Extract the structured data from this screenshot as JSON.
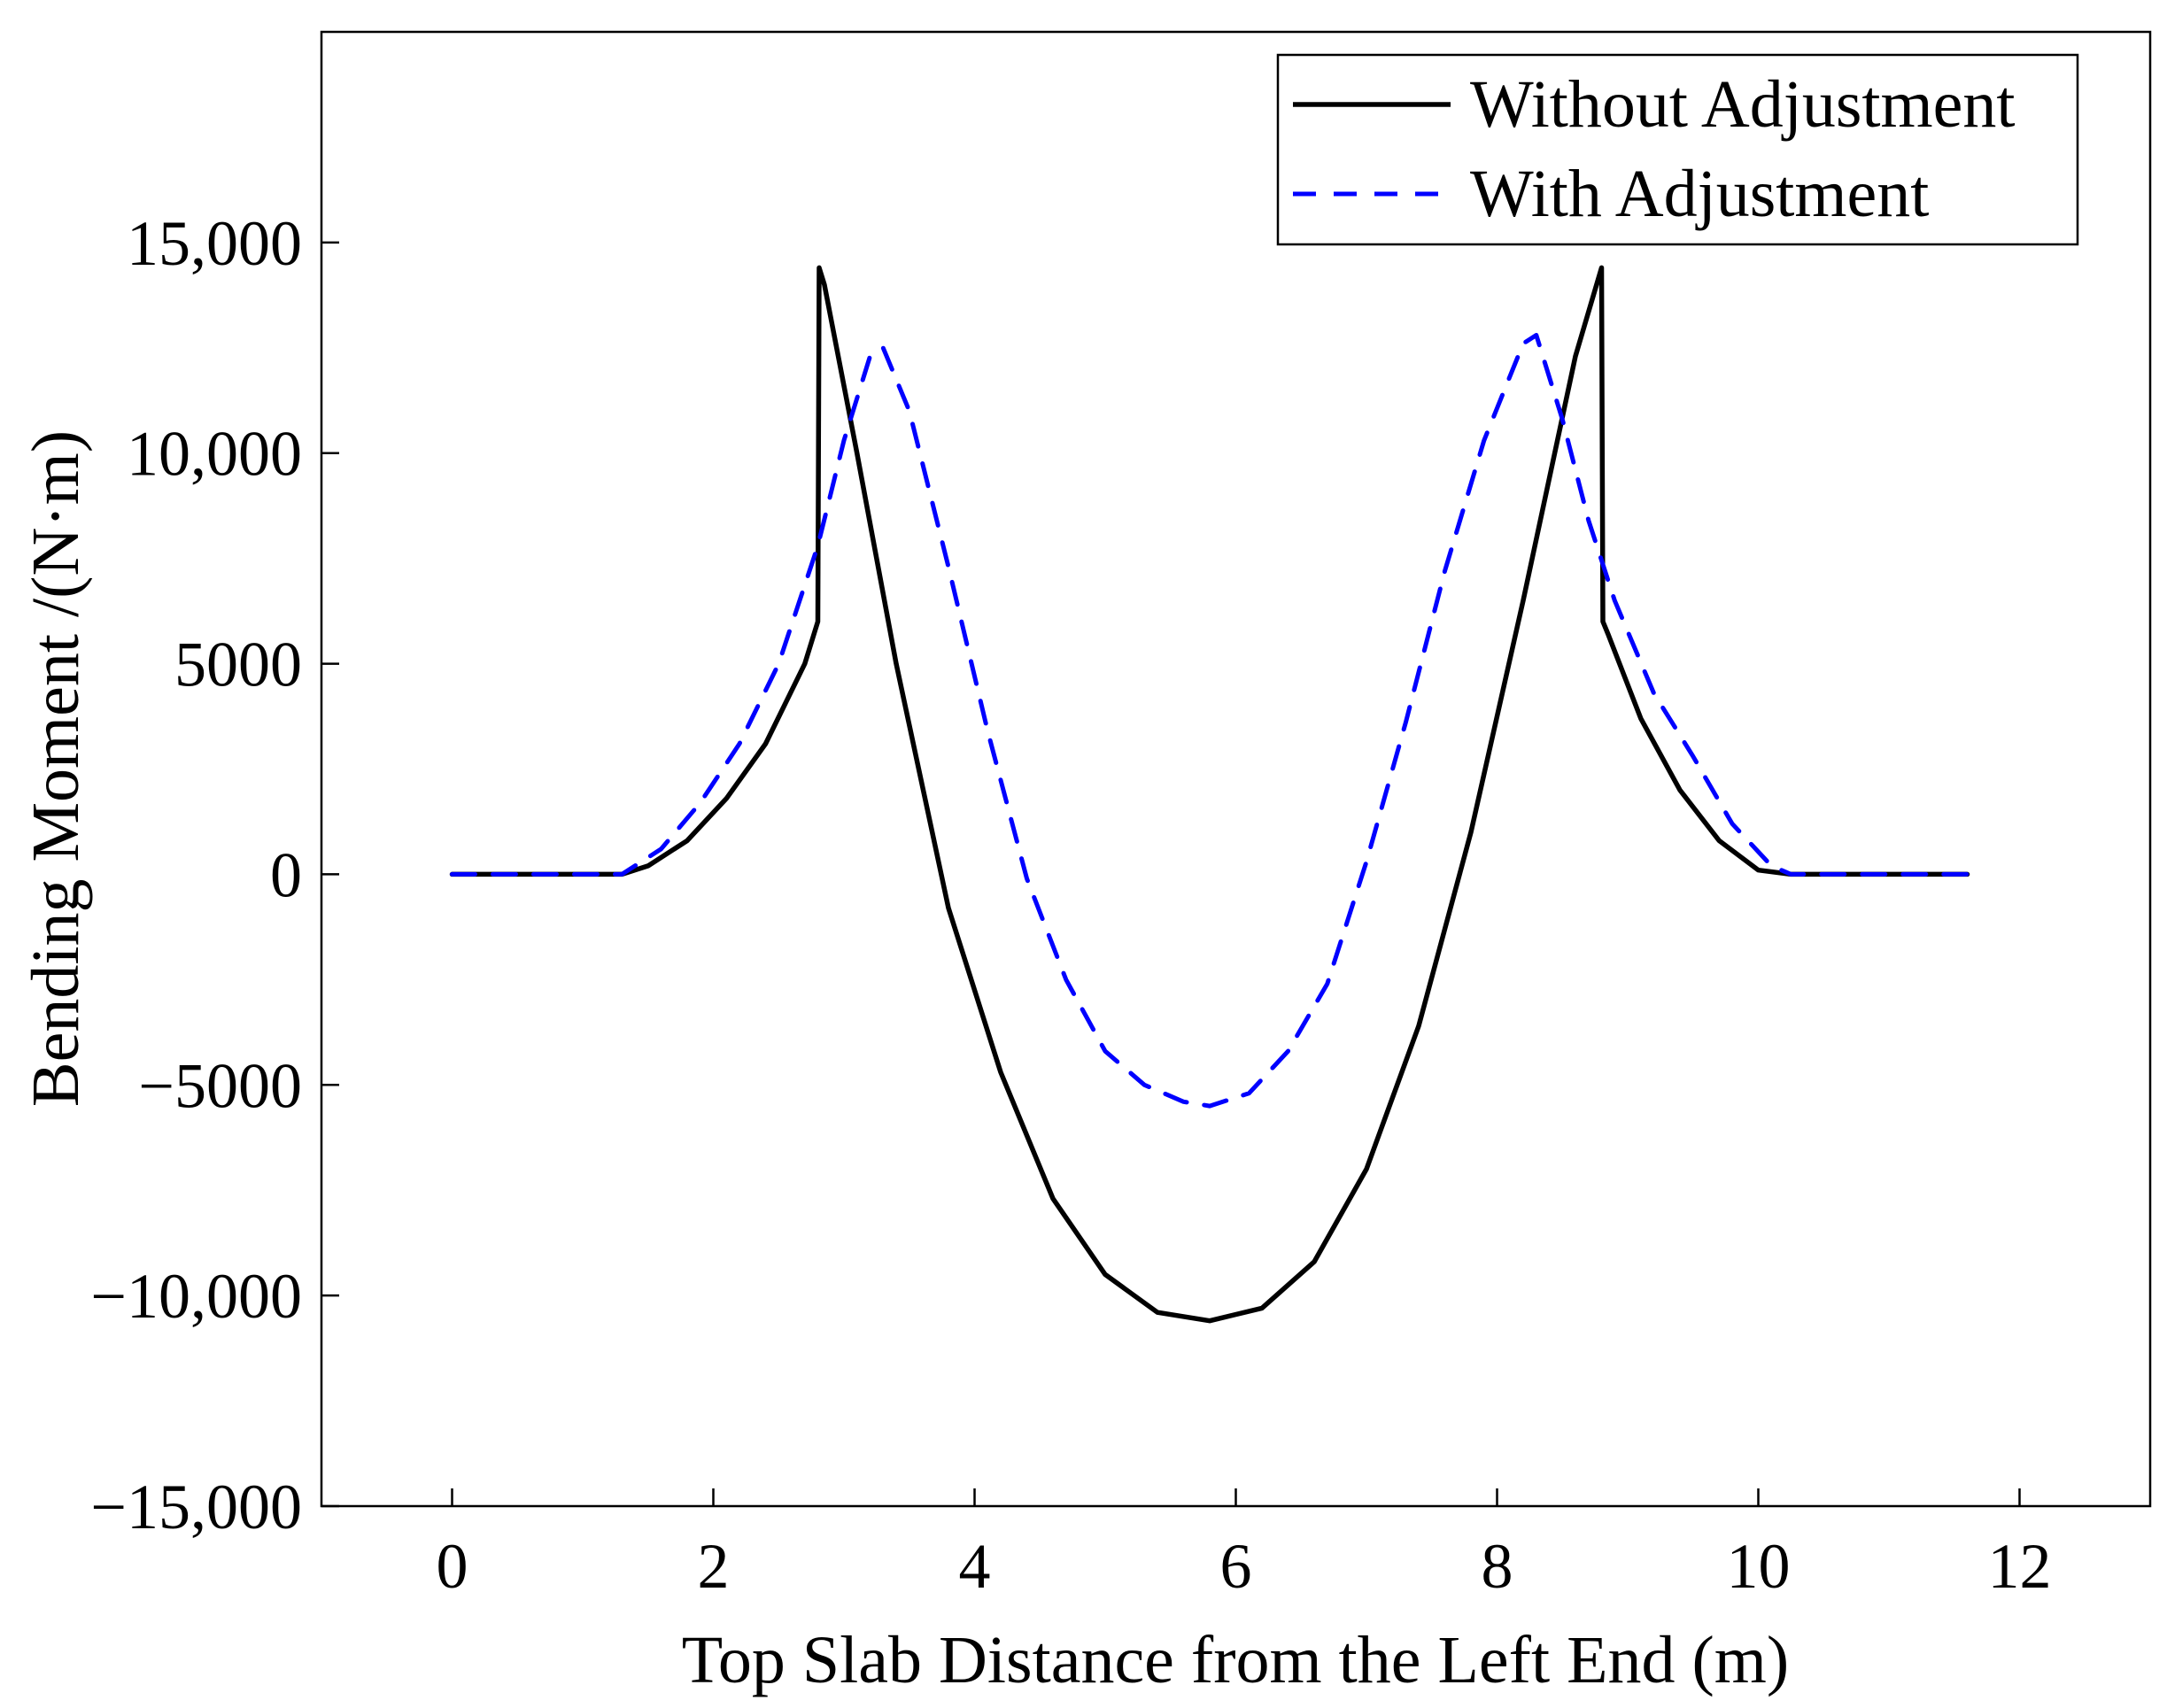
{
  "chart_data": {
    "type": "line",
    "xlabel": "Top Slab Distance from the Left End (m)",
    "ylabel": "Bending Moment /(N·m)",
    "xlim": [
      -1,
      13
    ],
    "ylim": [
      -15000,
      20000
    ],
    "x_ticks": [
      0,
      2,
      4,
      6,
      8,
      10,
      12
    ],
    "x_tick_labels": [
      "0",
      "2",
      "4",
      "6",
      "8",
      "10",
      "12"
    ],
    "y_ticks": [
      -15000,
      -10000,
      -5000,
      0,
      5000,
      10000,
      15000
    ],
    "y_tick_labels": [
      "−15,000",
      "−10,000",
      "−5000",
      "0",
      "5000",
      "10,000",
      "15,000"
    ],
    "grid": false,
    "legend_position": "top-right",
    "series": [
      {
        "name": "Without Adjustment",
        "color": "#000000",
        "style": "solid",
        "x": [
          0,
          1.3,
          1.5,
          1.8,
          2.1,
          2.4,
          2.7,
          2.8,
          2.81,
          2.85,
          3.1,
          3.4,
          3.8,
          4.2,
          4.6,
          5.0,
          5.4,
          5.8,
          6.2,
          6.6,
          7.0,
          7.4,
          7.8,
          8.2,
          8.6,
          8.8,
          8.81,
          8.85,
          9.1,
          9.4,
          9.7,
          10.0,
          10.25,
          11.6
        ],
        "y": [
          0,
          0,
          200,
          800,
          1800,
          3100,
          5000,
          6000,
          14400,
          14000,
          10000,
          5000,
          -800,
          -4700,
          -7700,
          -9500,
          -10400,
          -10600,
          -10300,
          -9200,
          -7000,
          -3600,
          1000,
          6500,
          12300,
          14400,
          6000,
          5700,
          3700,
          2000,
          800,
          100,
          0,
          0
        ]
      },
      {
        "name": "With Adjustment",
        "color": "#0000ff",
        "style": "dashed",
        "x": [
          0,
          1.3,
          1.6,
          1.9,
          2.2,
          2.5,
          2.8,
          3.0,
          3.2,
          3.3,
          3.5,
          3.8,
          4.1,
          4.4,
          4.7,
          5.0,
          5.3,
          5.6,
          5.8,
          6.1,
          6.4,
          6.7,
          7.0,
          7.3,
          7.6,
          7.9,
          8.2,
          8.3,
          8.5,
          8.7,
          8.9,
          9.2,
          9.5,
          9.8,
          10.1,
          10.25,
          11.6
        ],
        "y": [
          0,
          0,
          600,
          1700,
          3100,
          5000,
          7800,
          10300,
          12300,
          12500,
          11000,
          7300,
          3400,
          -100,
          -2500,
          -4200,
          -5000,
          -5400,
          -5500,
          -5200,
          -4200,
          -2600,
          300,
          3600,
          7200,
          10300,
          12600,
          12800,
          10800,
          8400,
          6500,
          4300,
          2800,
          1200,
          200,
          0,
          0
        ]
      }
    ]
  }
}
